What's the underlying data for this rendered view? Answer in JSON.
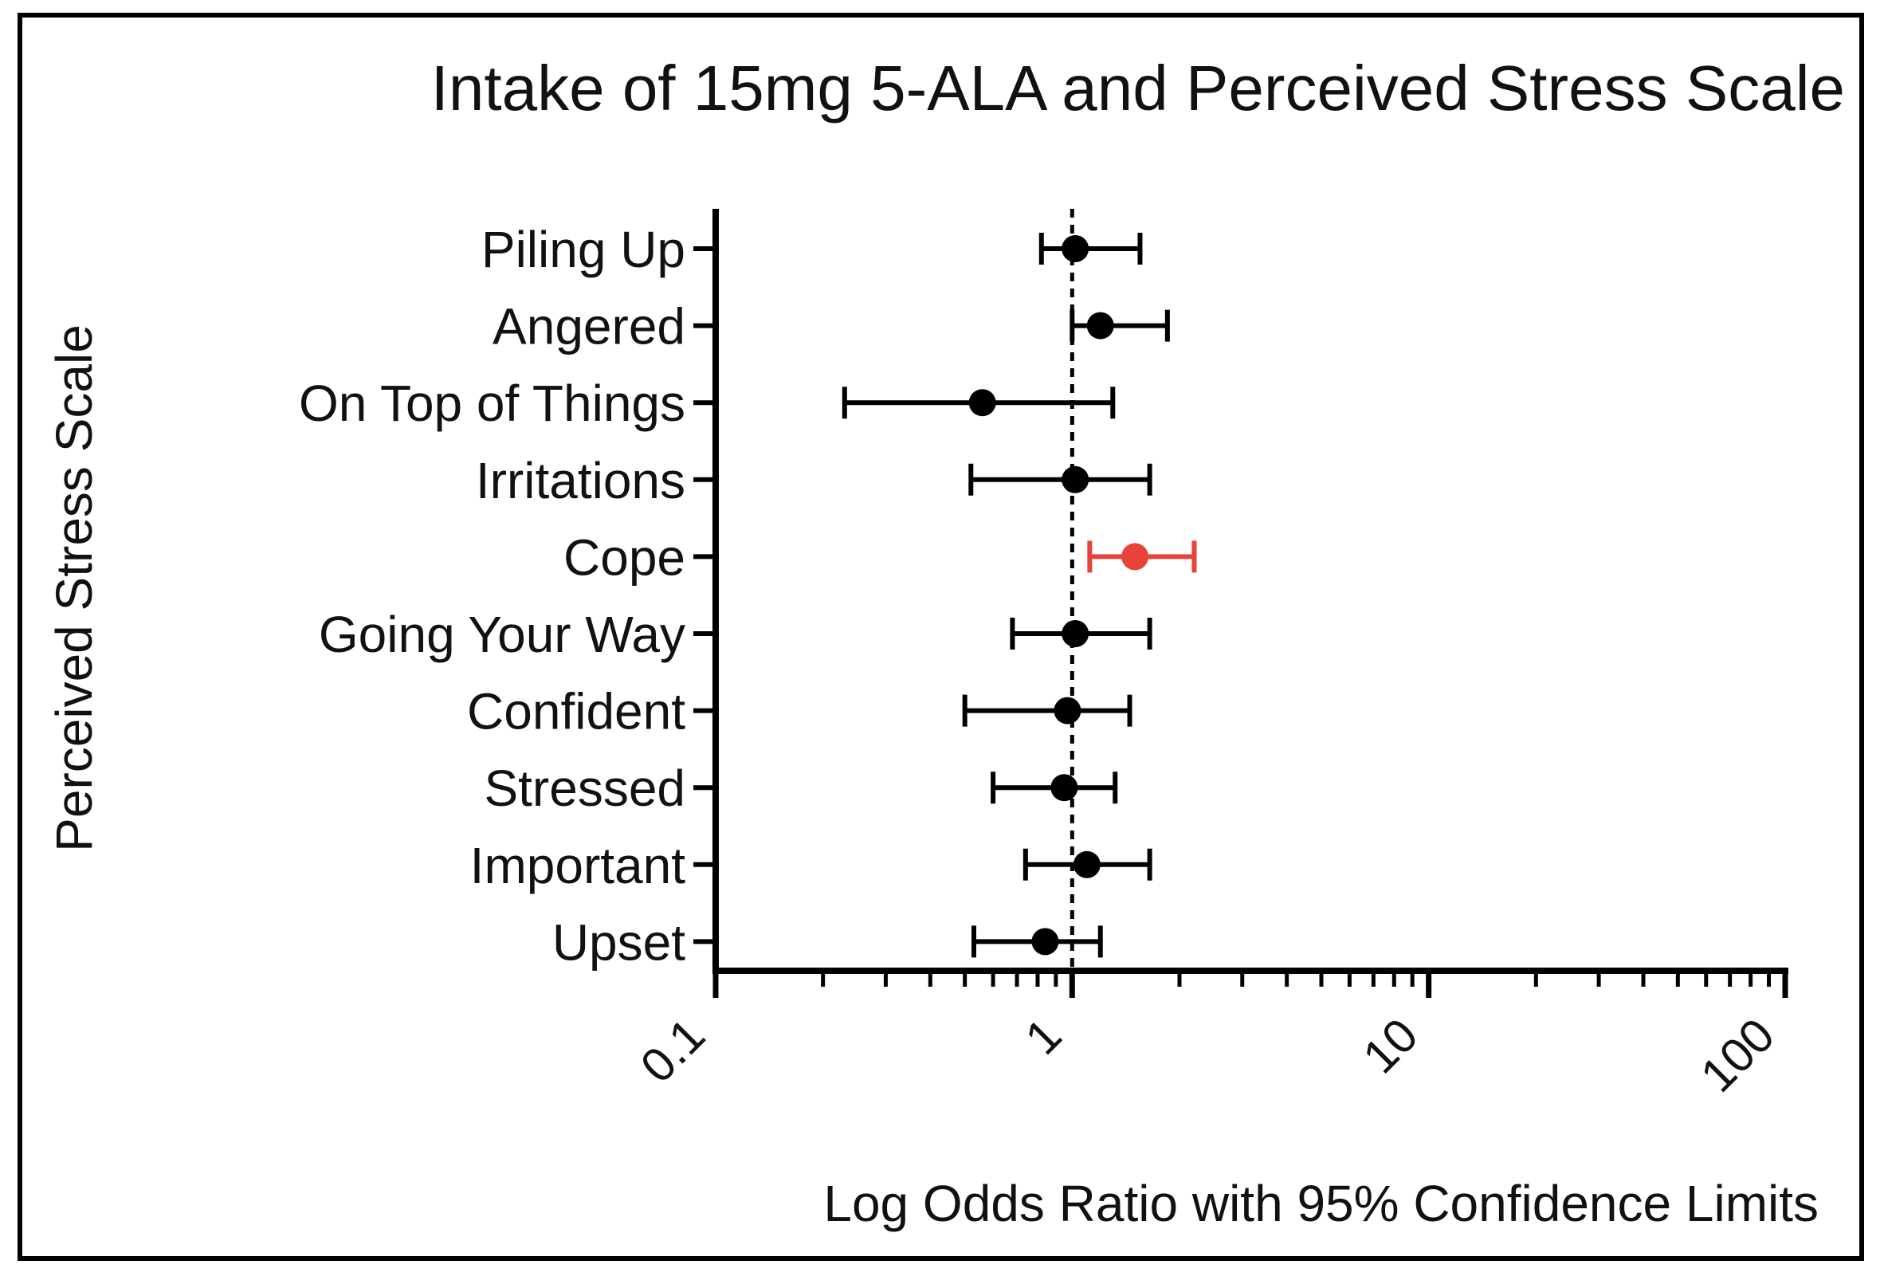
{
  "chart_data": {
    "type": "forest",
    "title": "Intake of 15mg 5-ALA and Perceived Stress Scale",
    "xlabel": "Log Odds Ratio with 95% Confidence Limits",
    "ylabel": "Perceived Stress Scale",
    "x_scale": "log10",
    "xlim": [
      0.1,
      100
    ],
    "x_ticks": [
      {
        "value": 0.1,
        "label": "0.1"
      },
      {
        "value": 1,
        "label": "1"
      },
      {
        "value": 10,
        "label": "10"
      },
      {
        "value": 100,
        "label": "100"
      }
    ],
    "reference_line": 1,
    "rows": [
      {
        "label": "Piling Up",
        "estimate": 1.02,
        "lower": 0.82,
        "upper": 1.55,
        "color": "#000000"
      },
      {
        "label": "Angered",
        "estimate": 1.2,
        "lower": 1.0,
        "upper": 1.85,
        "color": "#000000"
      },
      {
        "label": "On Top of Things",
        "estimate": 0.56,
        "lower": 0.23,
        "upper": 1.3,
        "color": "#000000"
      },
      {
        "label": "Irritations",
        "estimate": 1.02,
        "lower": 0.52,
        "upper": 1.65,
        "color": "#000000"
      },
      {
        "label": "Cope",
        "estimate": 1.5,
        "lower": 1.12,
        "upper": 2.2,
        "color": "#e8433b"
      },
      {
        "label": "Going Your Way",
        "estimate": 1.02,
        "lower": 0.68,
        "upper": 1.65,
        "color": "#000000"
      },
      {
        "label": "Confident",
        "estimate": 0.97,
        "lower": 0.5,
        "upper": 1.45,
        "color": "#000000"
      },
      {
        "label": "Stressed",
        "estimate": 0.95,
        "lower": 0.6,
        "upper": 1.32,
        "color": "#000000"
      },
      {
        "label": "Important",
        "estimate": 1.1,
        "lower": 0.74,
        "upper": 1.65,
        "color": "#000000"
      },
      {
        "label": "Upset",
        "estimate": 0.84,
        "lower": 0.53,
        "upper": 1.2,
        "color": "#000000"
      }
    ]
  }
}
